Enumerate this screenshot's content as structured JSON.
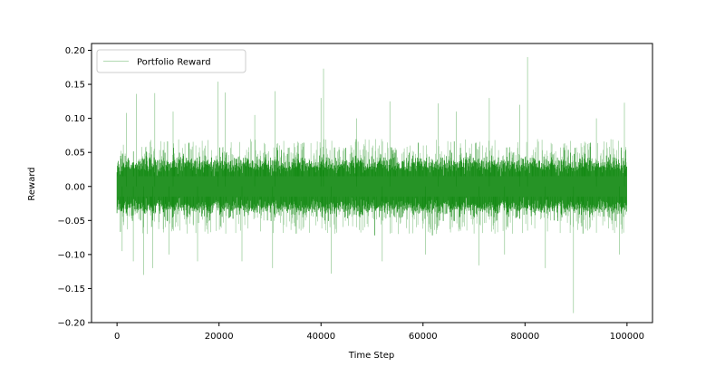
{
  "chart_data": {
    "type": "line",
    "title": "",
    "xlabel": "Time Step",
    "ylabel": "Reward",
    "xlim": [
      -5000,
      105000
    ],
    "ylim": [
      -0.2,
      0.21
    ],
    "x_ticks": [
      0,
      20000,
      40000,
      60000,
      80000,
      100000
    ],
    "y_ticks": [
      -0.2,
      -0.15,
      -0.1,
      -0.05,
      0.0,
      0.05,
      0.1,
      0.15,
      0.2
    ],
    "x_tick_labels": [
      "0",
      "20000",
      "40000",
      "60000",
      "80000",
      "100000"
    ],
    "y_tick_labels": [
      "−0.20",
      "−0.15",
      "−0.10",
      "−0.05",
      "0.00",
      "0.05",
      "0.10",
      "0.15",
      "0.20"
    ],
    "grid": false,
    "legend": {
      "placement": "top-left",
      "entries": [
        "Portfolio Reward"
      ]
    },
    "series": [
      {
        "name": "Portfolio Reward",
        "color": "#008000",
        "x_start": 0,
        "x_end": 100000,
        "n_points": 100000,
        "typical_band": [
          -0.03,
          0.03
        ],
        "frequent_extremes": [
          -0.07,
          0.07
        ],
        "spikes": [
          {
            "x": 1000,
            "y": -0.095
          },
          {
            "x": 1800,
            "y": 0.108
          },
          {
            "x": 3200,
            "y": -0.11
          },
          {
            "x": 3800,
            "y": 0.136
          },
          {
            "x": 5200,
            "y": -0.13
          },
          {
            "x": 7000,
            "y": -0.12
          },
          {
            "x": 7400,
            "y": 0.137
          },
          {
            "x": 10200,
            "y": -0.1
          },
          {
            "x": 11000,
            "y": 0.11
          },
          {
            "x": 15800,
            "y": -0.11
          },
          {
            "x": 19800,
            "y": 0.154
          },
          {
            "x": 21200,
            "y": 0.138
          },
          {
            "x": 24500,
            "y": -0.11
          },
          {
            "x": 27000,
            "y": 0.105
          },
          {
            "x": 30500,
            "y": -0.12
          },
          {
            "x": 31000,
            "y": 0.14
          },
          {
            "x": 40000,
            "y": 0.13
          },
          {
            "x": 40500,
            "y": 0.173
          },
          {
            "x": 42000,
            "y": -0.128
          },
          {
            "x": 47000,
            "y": 0.1
          },
          {
            "x": 52000,
            "y": -0.11
          },
          {
            "x": 53500,
            "y": 0.125
          },
          {
            "x": 60500,
            "y": -0.1
          },
          {
            "x": 63000,
            "y": 0.122
          },
          {
            "x": 66500,
            "y": 0.11
          },
          {
            "x": 71000,
            "y": -0.116
          },
          {
            "x": 73000,
            "y": 0.13
          },
          {
            "x": 76000,
            "y": -0.1
          },
          {
            "x": 79000,
            "y": 0.12
          },
          {
            "x": 80500,
            "y": 0.19
          },
          {
            "x": 84000,
            "y": -0.12
          },
          {
            "x": 89500,
            "y": -0.186
          },
          {
            "x": 94000,
            "y": 0.1
          },
          {
            "x": 98500,
            "y": -0.1
          },
          {
            "x": 99500,
            "y": 0.123
          }
        ]
      }
    ]
  }
}
